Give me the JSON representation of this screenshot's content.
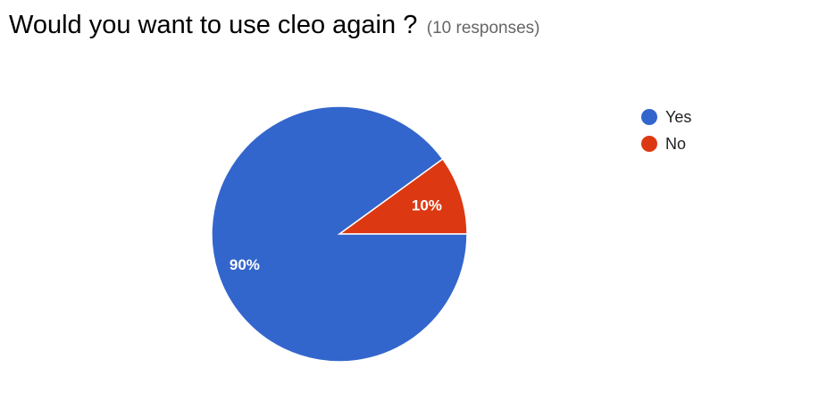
{
  "header": {
    "question": "Would you want to use cleo again ?",
    "responses": "(10 responses)"
  },
  "chart_data": {
    "type": "pie",
    "title": "Would you want to use cleo again ?",
    "total_responses": 10,
    "categories": [
      "Yes",
      "No"
    ],
    "values": [
      90,
      10
    ],
    "unit": "%",
    "labels": [
      "90%",
      "10%"
    ],
    "colors": [
      "#3366cc",
      "#dc3912"
    ],
    "legend_position": "right"
  }
}
